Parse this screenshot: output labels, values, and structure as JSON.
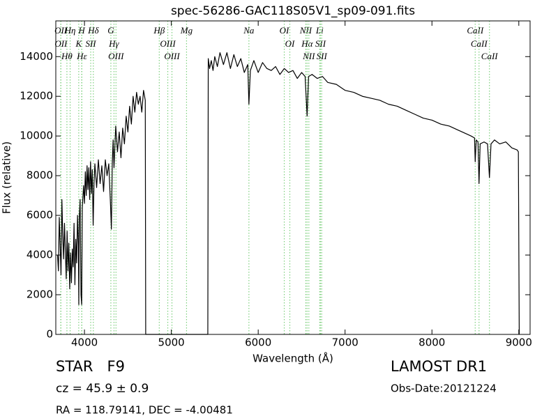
{
  "chart_data": {
    "type": "line",
    "title": "spec-56286-GAC118S05V1_sp09-091.fits",
    "x_label": "Wavelength (Å)",
    "y_label": "Flux (relative)",
    "color": "#000000",
    "line_color": "#7ccf7c",
    "xlim": [
      3670,
      9130
    ],
    "ylim": [
      0,
      15800
    ],
    "xticks": [
      4000,
      5000,
      6000,
      7000,
      8000,
      9000
    ],
    "yticks": [
      0,
      2000,
      4000,
      6000,
      8000,
      10000,
      12000,
      14000
    ],
    "x": [
      3690,
      3700,
      3710,
      3720,
      3730,
      3740,
      3750,
      3760,
      3770,
      3780,
      3790,
      3800,
      3810,
      3820,
      3830,
      3840,
      3850,
      3860,
      3870,
      3880,
      3890,
      3900,
      3910,
      3920,
      3930,
      3935,
      3940,
      3950,
      3960,
      3968,
      3975,
      3990,
      4000,
      4010,
      4020,
      4030,
      4040,
      4050,
      4060,
      4070,
      4080,
      4090,
      4100,
      4110,
      4120,
      4140,
      4160,
      4180,
      4200,
      4220,
      4240,
      4260,
      4280,
      4300,
      4310,
      4320,
      4330,
      4340,
      4360,
      4380,
      4400,
      4420,
      4440,
      4460,
      4480,
      4500,
      4520,
      4540,
      4560,
      4580,
      4600,
      4620,
      4640,
      4660,
      4680,
      4700,
      4705,
      5000,
      5420,
      5425,
      5440,
      5460,
      5480,
      5500,
      5530,
      5560,
      5600,
      5640,
      5680,
      5720,
      5760,
      5800,
      5840,
      5880,
      5893,
      5910,
      5950,
      6000,
      6050,
      6100,
      6150,
      6200,
      6250,
      6300,
      6350,
      6400,
      6450,
      6500,
      6540,
      6563,
      6580,
      6620,
      6680,
      6740,
      6800,
      6900,
      7000,
      7100,
      7200,
      7300,
      7400,
      7500,
      7600,
      7700,
      7800,
      7900,
      8000,
      8100,
      8200,
      8300,
      8400,
      8450,
      8490,
      8498,
      8510,
      8530,
      8542,
      8555,
      8600,
      8640,
      8662,
      8680,
      8720,
      8780,
      8850,
      8920,
      8980,
      8995,
      9005
    ],
    "values": [
      4000,
      3200,
      5900,
      4500,
      3000,
      6800,
      5000,
      3800,
      5600,
      4200,
      2800,
      5200,
      3200,
      4600,
      2300,
      4100,
      2600,
      4300,
      3400,
      5600,
      2500,
      4800,
      3600,
      6000,
      4500,
      1500,
      5800,
      6800,
      2000,
      1500,
      6400,
      7500,
      6600,
      8200,
      7000,
      8500,
      7300,
      8400,
      6800,
      8700,
      7100,
      8300,
      5500,
      7600,
      8600,
      7400,
      8800,
      7600,
      8500,
      7200,
      8800,
      8000,
      8600,
      6500,
      5300,
      8600,
      9800,
      8400,
      10500,
      9200,
      10200,
      8900,
      10400,
      9600,
      11000,
      10200,
      11500,
      10600,
      12000,
      11200,
      12200,
      11600,
      12000,
      11200,
      12300,
      11800,
      0,
      0,
      0,
      13900,
      13400,
      13800,
      13300,
      14000,
      13500,
      14200,
      13600,
      14200,
      13400,
      14100,
      13500,
      13900,
      13200,
      13600,
      11600,
      13300,
      13800,
      13200,
      13700,
      13400,
      13300,
      13500,
      13100,
      13400,
      13200,
      13300,
      12900,
      13200,
      13000,
      11000,
      13000,
      13100,
      12900,
      13000,
      12700,
      12600,
      12300,
      12200,
      12000,
      11900,
      11800,
      11600,
      11500,
      11300,
      11100,
      10900,
      10800,
      10600,
      10500,
      10300,
      10100,
      10000,
      9900,
      8700,
      9800,
      9700,
      7600,
      9600,
      9700,
      9600,
      7900,
      9600,
      9800,
      9600,
      9700,
      9400,
      9300,
      9200,
      0
    ],
    "spectral_lines": [
      {
        "wavelength": 3727,
        "label": "OII"
      },
      {
        "wavelength": 3729,
        "label": "OII"
      },
      {
        "wavelength": 3798,
        "label": "Hθ"
      },
      {
        "wavelength": 3835,
        "label": "Hη"
      },
      {
        "wavelength": 3934,
        "label": "K"
      },
      {
        "wavelength": 3968,
        "label": "H"
      },
      {
        "wavelength": 3970,
        "label": "Hε"
      },
      {
        "wavelength": 4072,
        "label": "SII"
      },
      {
        "wavelength": 4102,
        "label": "Hδ"
      },
      {
        "wavelength": 4304,
        "label": "G"
      },
      {
        "wavelength": 4340,
        "label": "Hγ"
      },
      {
        "wavelength": 4363,
        "label": "OIII"
      },
      {
        "wavelength": 4861,
        "label": "Hβ"
      },
      {
        "wavelength": 4959,
        "label": "OIII"
      },
      {
        "wavelength": 5007,
        "label": "OIII"
      },
      {
        "wavelength": 5175,
        "label": "Mg"
      },
      {
        "wavelength": 5893,
        "label": "Na"
      },
      {
        "wavelength": 6300,
        "label": "OI"
      },
      {
        "wavelength": 6364,
        "label": "OI"
      },
      {
        "wavelength": 6548,
        "label": "NII"
      },
      {
        "wavelength": 6563,
        "label": "Hα"
      },
      {
        "wavelength": 6583,
        "label": "NII"
      },
      {
        "wavelength": 6708,
        "label": "Li"
      },
      {
        "wavelength": 6717,
        "label": "SII"
      },
      {
        "wavelength": 6731,
        "label": "SII"
      },
      {
        "wavelength": 8498,
        "label": "CaII"
      },
      {
        "wavelength": 8542,
        "label": "CaII"
      },
      {
        "wavelength": 8662,
        "label": "CaII"
      }
    ],
    "spectral_class": "STAR   F9",
    "survey": "LAMOST DR1",
    "redshift_text": "cz = 45.9 ± 0.9",
    "obs_date": "Obs-Date:20121224",
    "coordinates": "RA = 118.79141, DEC = -4.00481"
  }
}
